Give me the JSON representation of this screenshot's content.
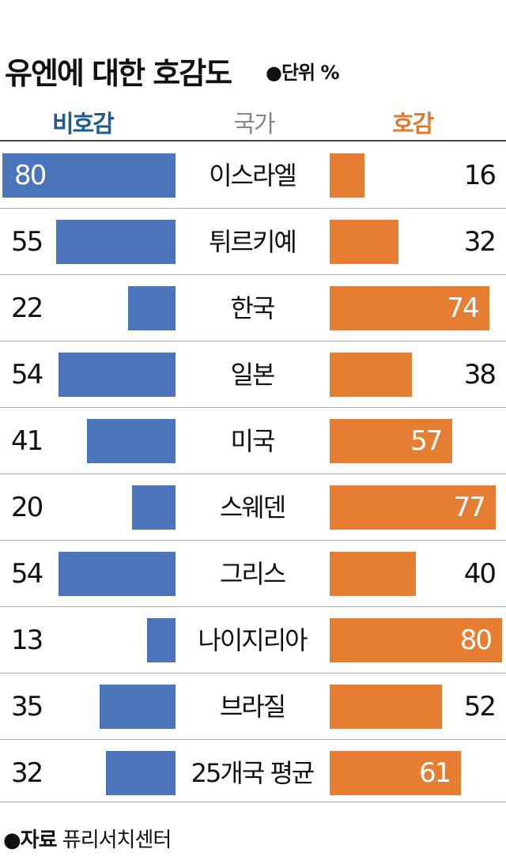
{
  "title": "유엔에 대한 호감도",
  "unit": "●단위 %",
  "headers": {
    "negative": "비호감",
    "country": "국가",
    "positive": "호감"
  },
  "source": {
    "label": "●자료",
    "text": "퓨리서치센터"
  },
  "colors": {
    "negative_bar": "#4a75ba",
    "positive_bar": "#e57e33",
    "negative_header": "#1e5a94",
    "positive_header": "#e07a2e"
  },
  "chart_data": {
    "type": "bar",
    "categories": [
      "이스라엘",
      "튀르키예",
      "한국",
      "일본",
      "미국",
      "스웨덴",
      "그리스",
      "나이지리아",
      "브라질",
      "25개국 평균"
    ],
    "series": [
      {
        "name": "비호감",
        "values": [
          80,
          55,
          22,
          54,
          41,
          20,
          54,
          13,
          35,
          32
        ]
      },
      {
        "name": "호감",
        "values": [
          16,
          32,
          74,
          38,
          57,
          77,
          40,
          80,
          52,
          61
        ]
      }
    ]
  }
}
